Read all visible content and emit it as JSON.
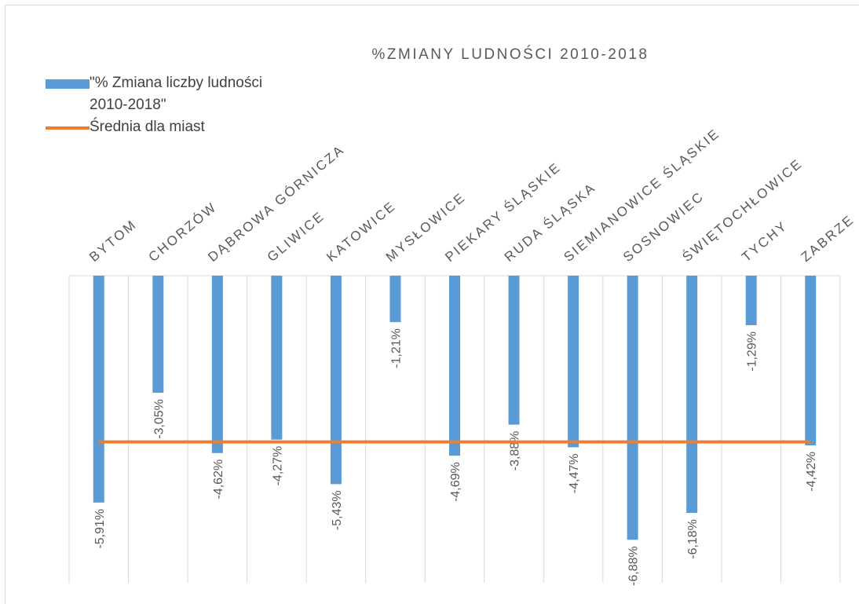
{
  "chart_data": {
    "type": "bar",
    "title": "%ZMIANY LUDNOŚCI 2010-2018",
    "categories": [
      "BYTOM",
      "CHORZÓW",
      "DĄBROWA GÓRNICZA",
      "GLIWICE",
      "KATOWICE",
      "MYSŁOWICE",
      "PIEKARY ŚLĄSKIE",
      "RUDA ŚLĄSKA",
      "SIEMIANOWICE ŚLĄSKIE",
      "SOSNOWIEC",
      "ŚWIĘTOCHŁOWICE",
      "TYCHY",
      "ZABRZE"
    ],
    "series": [
      {
        "name": "\"% Zmiana liczby ludności 2010-2018\"",
        "type": "bar",
        "color": "#5b9bd5",
        "values": [
          -5.91,
          -3.05,
          -4.62,
          -4.27,
          -5.43,
          -1.21,
          -4.69,
          -3.88,
          -4.47,
          -6.88,
          -6.18,
          -1.29,
          -4.42
        ],
        "value_labels": [
          "-5,91%",
          "-3,05%",
          "-4,62%",
          "-4,27%",
          "-5,43%",
          "-1,21%",
          "-4,69%",
          "-3,88%",
          "-4,47%",
          "-6,88%",
          "-6,18%",
          "-1,29%",
          "-4,42%"
        ]
      },
      {
        "name": "Średnia dla miast",
        "type": "line",
        "color": "#ed7d31",
        "values": [
          -4.33,
          -4.33,
          -4.33,
          -4.33,
          -4.33,
          -4.33,
          -4.33,
          -4.33,
          -4.33,
          -4.33,
          -4.33,
          -4.33,
          -4.33
        ]
      }
    ],
    "ylim": [
      -8,
      0
    ],
    "legend": "top-left"
  }
}
